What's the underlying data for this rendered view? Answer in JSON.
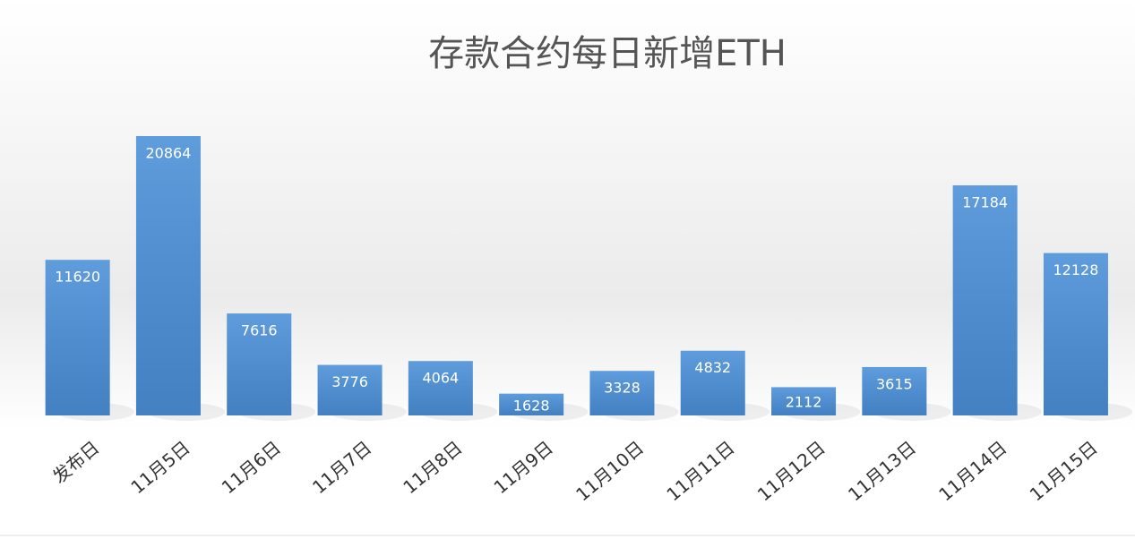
{
  "chart_data": {
    "type": "bar",
    "title": "存款合约每日新增ETH",
    "categories": [
      "发布日",
      "11月5日",
      "11月6日",
      "11月7日",
      "11月8日",
      "11月9日",
      "11月10日",
      "11月11日",
      "11月12日",
      "11月13日",
      "11月14日",
      "11月15日"
    ],
    "values": [
      11620,
      20864,
      7616,
      3776,
      4064,
      1628,
      3328,
      4832,
      2112,
      3615,
      17184,
      12128
    ],
    "color": "#4a8fd8"
  }
}
